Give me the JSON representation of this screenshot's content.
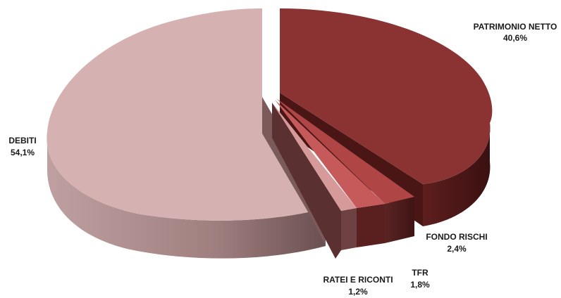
{
  "chart_data": {
    "type": "pie",
    "style": "3d-exploded",
    "slices": [
      {
        "label": "PATRIMONIO NETTO",
        "value_text": "40,6%",
        "value": 40.6,
        "color": "#8B3333"
      },
      {
        "label": "FONDO RISCHI",
        "value_text": "2,4%",
        "value": 2.4,
        "color": "#B04545"
      },
      {
        "label": "TFR",
        "value_text": "1,8%",
        "value": 1.8,
        "color": "#C65A5A"
      },
      {
        "label": "RATEI E RICONTI",
        "value_text": "1,2%",
        "value": 1.2,
        "color": "#D79A9A"
      },
      {
        "label": "DEBITI",
        "value_text": "54,1%",
        "value": 54.1,
        "color": "#D6B1B1"
      }
    ]
  }
}
